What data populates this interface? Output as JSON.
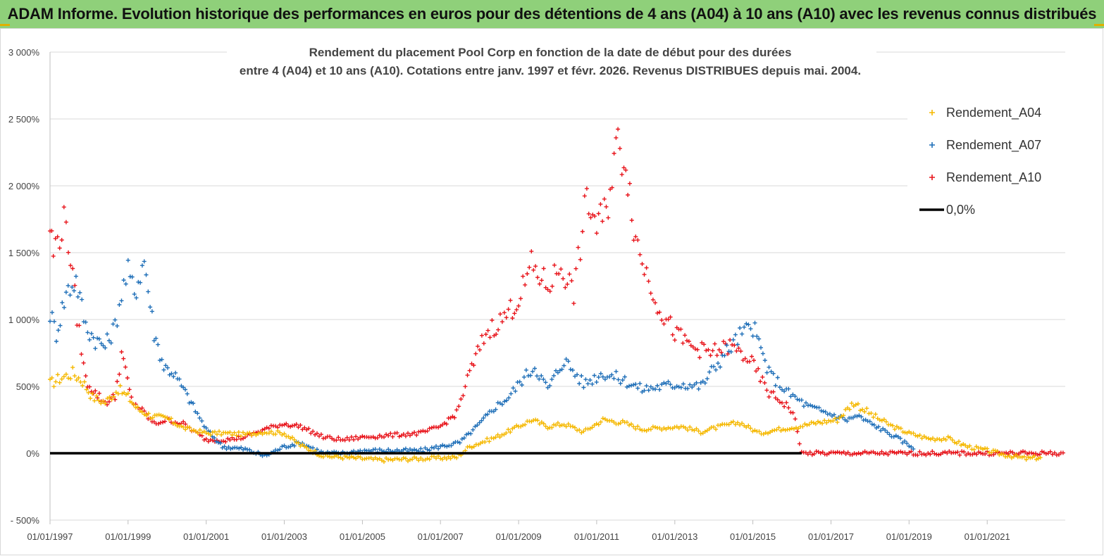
{
  "banner": {
    "title": "ADAM Informe. Evolution historique des performances en euros pour des détentions de 4 ans (A04) à 10 ans (A10) avec les revenus connus distribués"
  },
  "chart_data": {
    "type": "scatter",
    "title_line1": "Rendement du placement Pool Corp en fonction de la date de début pour des durées",
    "title_line2": "entre 4 (A04) et 10 ans (A10).  Cotations entre janv. 1997 et févr. 2026. Revenus DISTRIBUES depuis mai. 2004.",
    "xlabel": "",
    "ylabel": "",
    "x_range": [
      "1997-01-01",
      "2023-01-01"
    ],
    "ylim": [
      -500,
      3000
    ],
    "y_ticks": [
      {
        "value": 3000,
        "label": "3 000%"
      },
      {
        "value": 2500,
        "label": "2 500%"
      },
      {
        "value": 2000,
        "label": "2 000%"
      },
      {
        "value": 1500,
        "label": "1 500%"
      },
      {
        "value": 1000,
        "label": "1 000%"
      },
      {
        "value": 500,
        "label": "500%"
      },
      {
        "value": 0,
        "label": "0%"
      },
      {
        "value": -500,
        "label": "- 500%"
      }
    ],
    "x_ticks": [
      {
        "value": "1997-01-01",
        "label": "01/01/1997"
      },
      {
        "value": "1999-01-01",
        "label": "01/01/1999"
      },
      {
        "value": "2001-01-01",
        "label": "01/01/2001"
      },
      {
        "value": "2003-01-01",
        "label": "01/01/2003"
      },
      {
        "value": "2005-01-01",
        "label": "01/01/2005"
      },
      {
        "value": "2007-01-01",
        "label": "01/01/2007"
      },
      {
        "value": "2009-01-01",
        "label": "01/01/2009"
      },
      {
        "value": "2011-01-01",
        "label": "01/01/2011"
      },
      {
        "value": "2013-01-01",
        "label": "01/01/2013"
      },
      {
        "value": "2015-01-01",
        "label": "01/01/2015"
      },
      {
        "value": "2017-01-01",
        "label": "01/01/2017"
      },
      {
        "value": "2019-01-01",
        "label": "01/01/2019"
      },
      {
        "value": "2021-01-01",
        "label": "01/01/2021"
      }
    ],
    "grid": "horizontal",
    "legend_position": "top-right",
    "legend": [
      {
        "label": "Rendement_A04",
        "color": "#f5b800",
        "marker": "plus"
      },
      {
        "label": "Rendement_A07",
        "color": "#1f6fb8",
        "marker": "plus"
      },
      {
        "label": "Rendement_A10",
        "color": "#e8141b",
        "marker": "plus"
      },
      {
        "label": "0,0%",
        "color": "#000000",
        "marker": "line"
      }
    ],
    "series": [
      {
        "name": "Rendement_A04",
        "color": "#f5b800",
        "points": [
          [
            "1997-01-01",
            520
          ],
          [
            "1997-04-01",
            560
          ],
          [
            "1997-08-01",
            600
          ],
          [
            "1997-11-01",
            540
          ],
          [
            "1998-02-01",
            420
          ],
          [
            "1998-06-01",
            380
          ],
          [
            "1998-10-01",
            480
          ],
          [
            "1999-01-01",
            420
          ],
          [
            "1999-04-01",
            330
          ],
          [
            "1999-08-01",
            280
          ],
          [
            "2000-01-01",
            260
          ],
          [
            "2000-06-01",
            190
          ],
          [
            "2001-01-01",
            150
          ],
          [
            "2001-07-01",
            150
          ],
          [
            "2002-01-01",
            140
          ],
          [
            "2002-07-01",
            160
          ],
          [
            "2003-01-01",
            150
          ],
          [
            "2003-06-01",
            60
          ],
          [
            "2004-01-01",
            -20
          ],
          [
            "2004-07-01",
            -30
          ],
          [
            "2005-01-01",
            -40
          ],
          [
            "2005-07-01",
            -50
          ],
          [
            "2006-01-01",
            -45
          ],
          [
            "2006-07-01",
            -40
          ],
          [
            "2007-01-01",
            -35
          ],
          [
            "2007-06-01",
            -30
          ],
          [
            "2007-10-01",
            50
          ],
          [
            "2008-06-01",
            120
          ],
          [
            "2009-01-01",
            200
          ],
          [
            "2009-05-01",
            250
          ],
          [
            "2009-10-01",
            200
          ],
          [
            "2010-03-01",
            220
          ],
          [
            "2010-09-01",
            160
          ],
          [
            "2011-03-01",
            250
          ],
          [
            "2011-09-01",
            230
          ],
          [
            "2012-03-01",
            180
          ],
          [
            "2012-09-01",
            190
          ],
          [
            "2013-03-01",
            200
          ],
          [
            "2013-09-01",
            160
          ],
          [
            "2014-03-01",
            200
          ],
          [
            "2014-09-01",
            230
          ],
          [
            "2015-03-01",
            150
          ],
          [
            "2015-09-01",
            180
          ],
          [
            "2016-03-01",
            200
          ],
          [
            "2016-09-01",
            230
          ],
          [
            "2017-03-01",
            250
          ],
          [
            "2017-08-01",
            380
          ],
          [
            "2018-02-01",
            280
          ],
          [
            "2018-08-01",
            200
          ],
          [
            "2019-01-01",
            150
          ],
          [
            "2019-07-01",
            110
          ],
          [
            "2020-01-01",
            110
          ],
          [
            "2020-07-01",
            50
          ],
          [
            "2021-01-01",
            20
          ],
          [
            "2021-06-01",
            -10
          ],
          [
            "2022-01-01",
            -40
          ],
          [
            "2022-06-01",
            -30
          ]
        ]
      },
      {
        "name": "Rendement_A07",
        "color": "#1f6fb8",
        "points": [
          [
            "1997-01-01",
            1050
          ],
          [
            "1997-03-01",
            900
          ],
          [
            "1997-06-01",
            1200
          ],
          [
            "1997-09-01",
            1300
          ],
          [
            "1997-12-01",
            950
          ],
          [
            "1998-03-01",
            850
          ],
          [
            "1998-06-01",
            800
          ],
          [
            "1998-09-01",
            950
          ],
          [
            "1998-11-01",
            1200
          ],
          [
            "1999-01-01",
            1350
          ],
          [
            "1999-03-01",
            1200
          ],
          [
            "1999-06-01",
            1450
          ],
          [
            "1999-09-01",
            900
          ],
          [
            "1999-12-01",
            650
          ],
          [
            "2000-03-01",
            600
          ],
          [
            "2000-06-01",
            480
          ],
          [
            "2000-09-01",
            350
          ],
          [
            "2001-01-01",
            180
          ],
          [
            "2001-06-01",
            50
          ],
          [
            "2002-01-01",
            30
          ],
          [
            "2002-07-01",
            -20
          ],
          [
            "2003-01-01",
            50
          ],
          [
            "2003-06-01",
            80
          ],
          [
            "2004-01-01",
            0
          ],
          [
            "2004-07-01",
            0
          ],
          [
            "2005-01-01",
            20
          ],
          [
            "2005-07-01",
            20
          ],
          [
            "2006-01-01",
            20
          ],
          [
            "2006-07-01",
            20
          ],
          [
            "2007-01-01",
            50
          ],
          [
            "2007-07-01",
            80
          ],
          [
            "2008-01-01",
            220
          ],
          [
            "2008-06-01",
            350
          ],
          [
            "2008-10-01",
            420
          ],
          [
            "2009-02-01",
            550
          ],
          [
            "2009-06-01",
            650
          ],
          [
            "2009-10-01",
            480
          ],
          [
            "2010-03-01",
            700
          ],
          [
            "2010-09-01",
            520
          ],
          [
            "2011-03-01",
            600
          ],
          [
            "2011-09-01",
            550
          ],
          [
            "2012-03-01",
            480
          ],
          [
            "2012-09-01",
            500
          ],
          [
            "2013-03-01",
            520
          ],
          [
            "2013-09-01",
            500
          ],
          [
            "2014-03-01",
            700
          ],
          [
            "2014-09-01",
            880
          ],
          [
            "2015-01-01",
            950
          ],
          [
            "2015-06-01",
            600
          ],
          [
            "2015-12-01",
            450
          ],
          [
            "2016-06-01",
            350
          ],
          [
            "2016-12-01",
            300
          ],
          [
            "2017-06-01",
            250
          ],
          [
            "2017-09-01",
            280
          ],
          [
            "2018-03-01",
            200
          ],
          [
            "2018-09-01",
            120
          ],
          [
            "2019-01-01",
            60
          ],
          [
            "2019-03-01",
            40
          ]
        ]
      },
      {
        "name": "Rendement_A10",
        "color": "#e8141b",
        "points": [
          [
            "1997-01-01",
            1700
          ],
          [
            "1997-02-01",
            1500
          ],
          [
            "1997-04-01",
            1650
          ],
          [
            "1997-06-01",
            1750
          ],
          [
            "1997-08-01",
            1300
          ],
          [
            "1997-10-01",
            900
          ],
          [
            "1997-12-01",
            550
          ],
          [
            "1998-03-01",
            450
          ],
          [
            "1998-06-01",
            380
          ],
          [
            "1998-09-01",
            420
          ],
          [
            "1998-11-01",
            750
          ],
          [
            "1999-02-01",
            400
          ],
          [
            "1999-06-01",
            300
          ],
          [
            "1999-09-01",
            220
          ],
          [
            "2000-01-01",
            250
          ],
          [
            "2000-06-01",
            220
          ],
          [
            "2001-01-01",
            100
          ],
          [
            "2001-07-01",
            100
          ],
          [
            "2002-01-01",
            120
          ],
          [
            "2002-07-01",
            180
          ],
          [
            "2003-01-01",
            220
          ],
          [
            "2003-06-01",
            200
          ],
          [
            "2004-01-01",
            120
          ],
          [
            "2004-07-01",
            100
          ],
          [
            "2005-01-01",
            120
          ],
          [
            "2005-07-01",
            130
          ],
          [
            "2006-01-01",
            140
          ],
          [
            "2006-07-01",
            150
          ],
          [
            "2007-01-01",
            200
          ],
          [
            "2007-06-01",
            300
          ],
          [
            "2007-10-01",
            600
          ],
          [
            "2008-03-01",
            900
          ],
          [
            "2008-08-01",
            1000
          ],
          [
            "2009-01-01",
            1150
          ],
          [
            "2009-05-01",
            1400
          ],
          [
            "2009-10-01",
            1250
          ],
          [
            "2010-02-01",
            1400
          ],
          [
            "2010-06-01",
            1200
          ],
          [
            "2010-10-01",
            1900
          ],
          [
            "2011-01-01",
            1700
          ],
          [
            "2011-04-01",
            1800
          ],
          [
            "2011-07-01",
            2300
          ],
          [
            "2011-10-01",
            2200
          ],
          [
            "2012-01-01",
            1600
          ],
          [
            "2012-05-01",
            1300
          ],
          [
            "2012-09-01",
            1050
          ],
          [
            "2013-01-01",
            900
          ],
          [
            "2013-06-01",
            800
          ],
          [
            "2013-12-01",
            750
          ],
          [
            "2014-06-01",
            800
          ],
          [
            "2014-12-01",
            700
          ],
          [
            "2015-06-01",
            450
          ],
          [
            "2015-12-01",
            350
          ],
          [
            "2016-02-01",
            250
          ],
          [
            "2016-04-01",
            0
          ],
          [
            "2022-12-31",
            0
          ]
        ]
      },
      {
        "name": "0,0%",
        "color": "#000000",
        "points": [
          [
            "1997-01-01",
            0
          ],
          [
            "2016-04-01",
            0
          ]
        ]
      }
    ]
  }
}
